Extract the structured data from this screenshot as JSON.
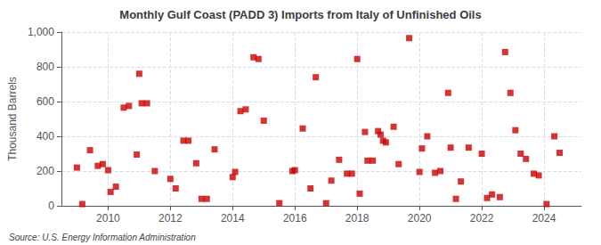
{
  "chart_data": {
    "type": "scatter",
    "title": "Monthly Gulf Coast (PADD 3) Imports from Italy of Unfinished Oils",
    "y_label": "Thousand Barrels",
    "annotations": [
      "Source: U.S. Energy Information Administration"
    ],
    "color": "#cc0000",
    "marker": "square",
    "grid": true,
    "xlim": [
      2008.5,
      2025.2
    ],
    "xticks": [
      2010,
      2012,
      2014,
      2016,
      2018,
      2020,
      2022,
      2024
    ],
    "ylim": [
      0,
      1000
    ],
    "yticks": [
      0,
      200,
      400,
      600,
      800,
      {
        "value": 1000,
        "label": "1,000"
      }
    ],
    "x": [
      2009.0,
      2009.17,
      2009.42,
      2009.67,
      2009.83,
      2010.0,
      2010.08,
      2010.25,
      2010.5,
      2010.67,
      2010.92,
      2011.0,
      2011.08,
      2011.25,
      2011.5,
      2012.0,
      2012.17,
      2012.42,
      2012.58,
      2012.83,
      2013.0,
      2013.17,
      2013.42,
      2014.0,
      2014.08,
      2014.25,
      2014.42,
      2014.67,
      2014.83,
      2015.0,
      2015.5,
      2015.92,
      2016.0,
      2016.25,
      2016.5,
      2016.67,
      2017.0,
      2017.17,
      2017.42,
      2017.67,
      2017.83,
      2018.0,
      2018.08,
      2018.25,
      2018.33,
      2018.5,
      2018.67,
      2018.75,
      2018.83,
      2018.92,
      2019.17,
      2019.33,
      2019.67,
      2020.0,
      2020.08,
      2020.25,
      2020.5,
      2020.67,
      2020.92,
      2021.0,
      2021.17,
      2021.33,
      2021.58,
      2022.0,
      2022.17,
      2022.33,
      2022.58,
      2022.75,
      2022.92,
      2023.08,
      2023.25,
      2023.42,
      2023.67,
      2023.83,
      2024.08,
      2024.33,
      2024.5
    ],
    "values": [
      220,
      10,
      320,
      230,
      240,
      205,
      80,
      110,
      565,
      575,
      295,
      760,
      590,
      590,
      200,
      155,
      100,
      375,
      375,
      245,
      40,
      40,
      325,
      165,
      195,
      545,
      555,
      855,
      845,
      490,
      15,
      200,
      205,
      445,
      100,
      740,
      15,
      145,
      265,
      185,
      185,
      845,
      70,
      425,
      260,
      260,
      430,
      410,
      375,
      365,
      455,
      240,
      965,
      195,
      330,
      400,
      190,
      200,
      650,
      335,
      40,
      140,
      335,
      300,
      45,
      65,
      50,
      885,
      650,
      435,
      300,
      270,
      185,
      175,
      10,
      400,
      305
    ]
  }
}
